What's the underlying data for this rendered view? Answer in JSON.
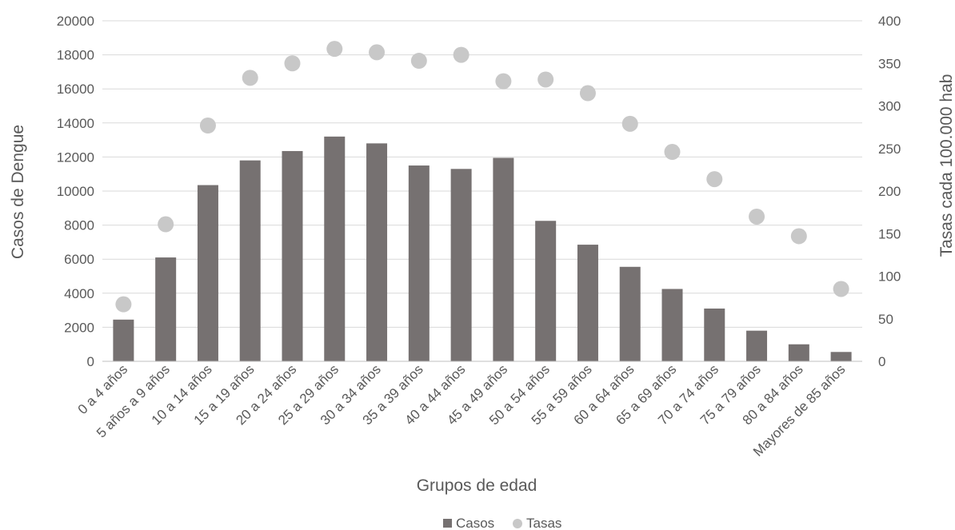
{
  "chart_data": {
    "type": "bar",
    "categories": [
      "0 a 4 años",
      "5 años a 9 años",
      "10 a 14 años",
      "15 a 19 años",
      "20 a 24 años",
      "25 a 29 años",
      "30 a 34 años",
      "35 a 39 años",
      "40 a 44 años",
      "45 a 49 años",
      "50 a 54 años",
      "55 a 59 años",
      "60 a 64 años",
      "65 a 69 años",
      "70 a  74 años",
      "75 a 79 años",
      "80 a 84 años",
      "Mayores de 85 años"
    ],
    "series": [
      {
        "name": "Casos",
        "type": "bar",
        "axis": "left",
        "color": "#767171",
        "values": [
          2450,
          6100,
          10350,
          11800,
          12350,
          13200,
          12800,
          11500,
          11300,
          11950,
          8250,
          6850,
          5550,
          4250,
          3100,
          1800,
          1000,
          550
        ]
      },
      {
        "name": "Tasas",
        "type": "scatter",
        "axis": "right",
        "color": "#c8c8c8",
        "values": [
          67,
          161,
          277,
          333,
          350,
          367,
          363,
          353,
          360,
          329,
          331,
          315,
          279,
          246,
          214,
          170,
          147,
          85
        ]
      }
    ],
    "xlabel": "Grupos de edad",
    "ylabel": "Casos de Dengue",
    "y2label": "Tasas  cada 100.000 hab",
    "ylim": [
      0,
      20000
    ],
    "y2lim": [
      0,
      400
    ],
    "yticks": [
      "0",
      "2000",
      "4000",
      "6000",
      "8000",
      "10000",
      "12000",
      "14000",
      "16000",
      "18000",
      "20000"
    ],
    "y2ticks": [
      "0",
      "50",
      "100",
      "150",
      "200",
      "250",
      "300",
      "350",
      "400"
    ],
    "grid": true,
    "legend_position": "bottom"
  }
}
